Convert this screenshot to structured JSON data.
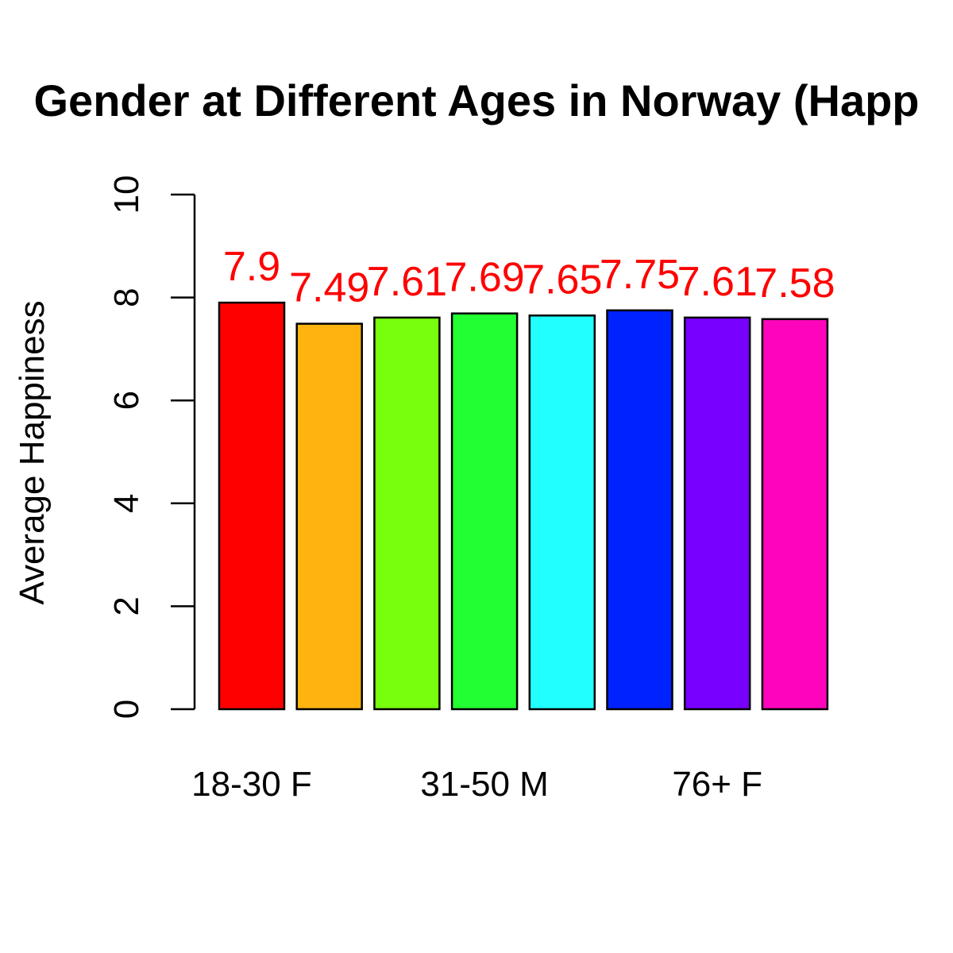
{
  "chart_data": {
    "type": "bar",
    "title": "Gender at Different Ages in Norway (Happ",
    "xlabel": "",
    "ylabel": "Average Happiness",
    "ylim": [
      0,
      10
    ],
    "yticks": [
      "0",
      "2",
      "4",
      "6",
      "8",
      "10"
    ],
    "x_tick_labels": [
      "18-30 F",
      "31-50 M",
      "76+ F"
    ],
    "x_tick_label_bar_indices": [
      0,
      3,
      6
    ],
    "values": [
      7.9,
      7.49,
      7.61,
      7.69,
      7.65,
      7.75,
      7.61,
      7.58
    ],
    "data_labels": [
      "7.9",
      "7.49",
      "7.61",
      "7.69",
      "7.65",
      "7.75",
      "7.61",
      "7.58"
    ],
    "colors": [
      "#FF0000",
      "#FFB30F",
      "#77FF0E",
      "#22FF33",
      "#22FFFF",
      "#0022FF",
      "#7700FF",
      "#FF05BB"
    ],
    "data_label_color": "#FF0000",
    "grid": false,
    "legend": "none"
  }
}
